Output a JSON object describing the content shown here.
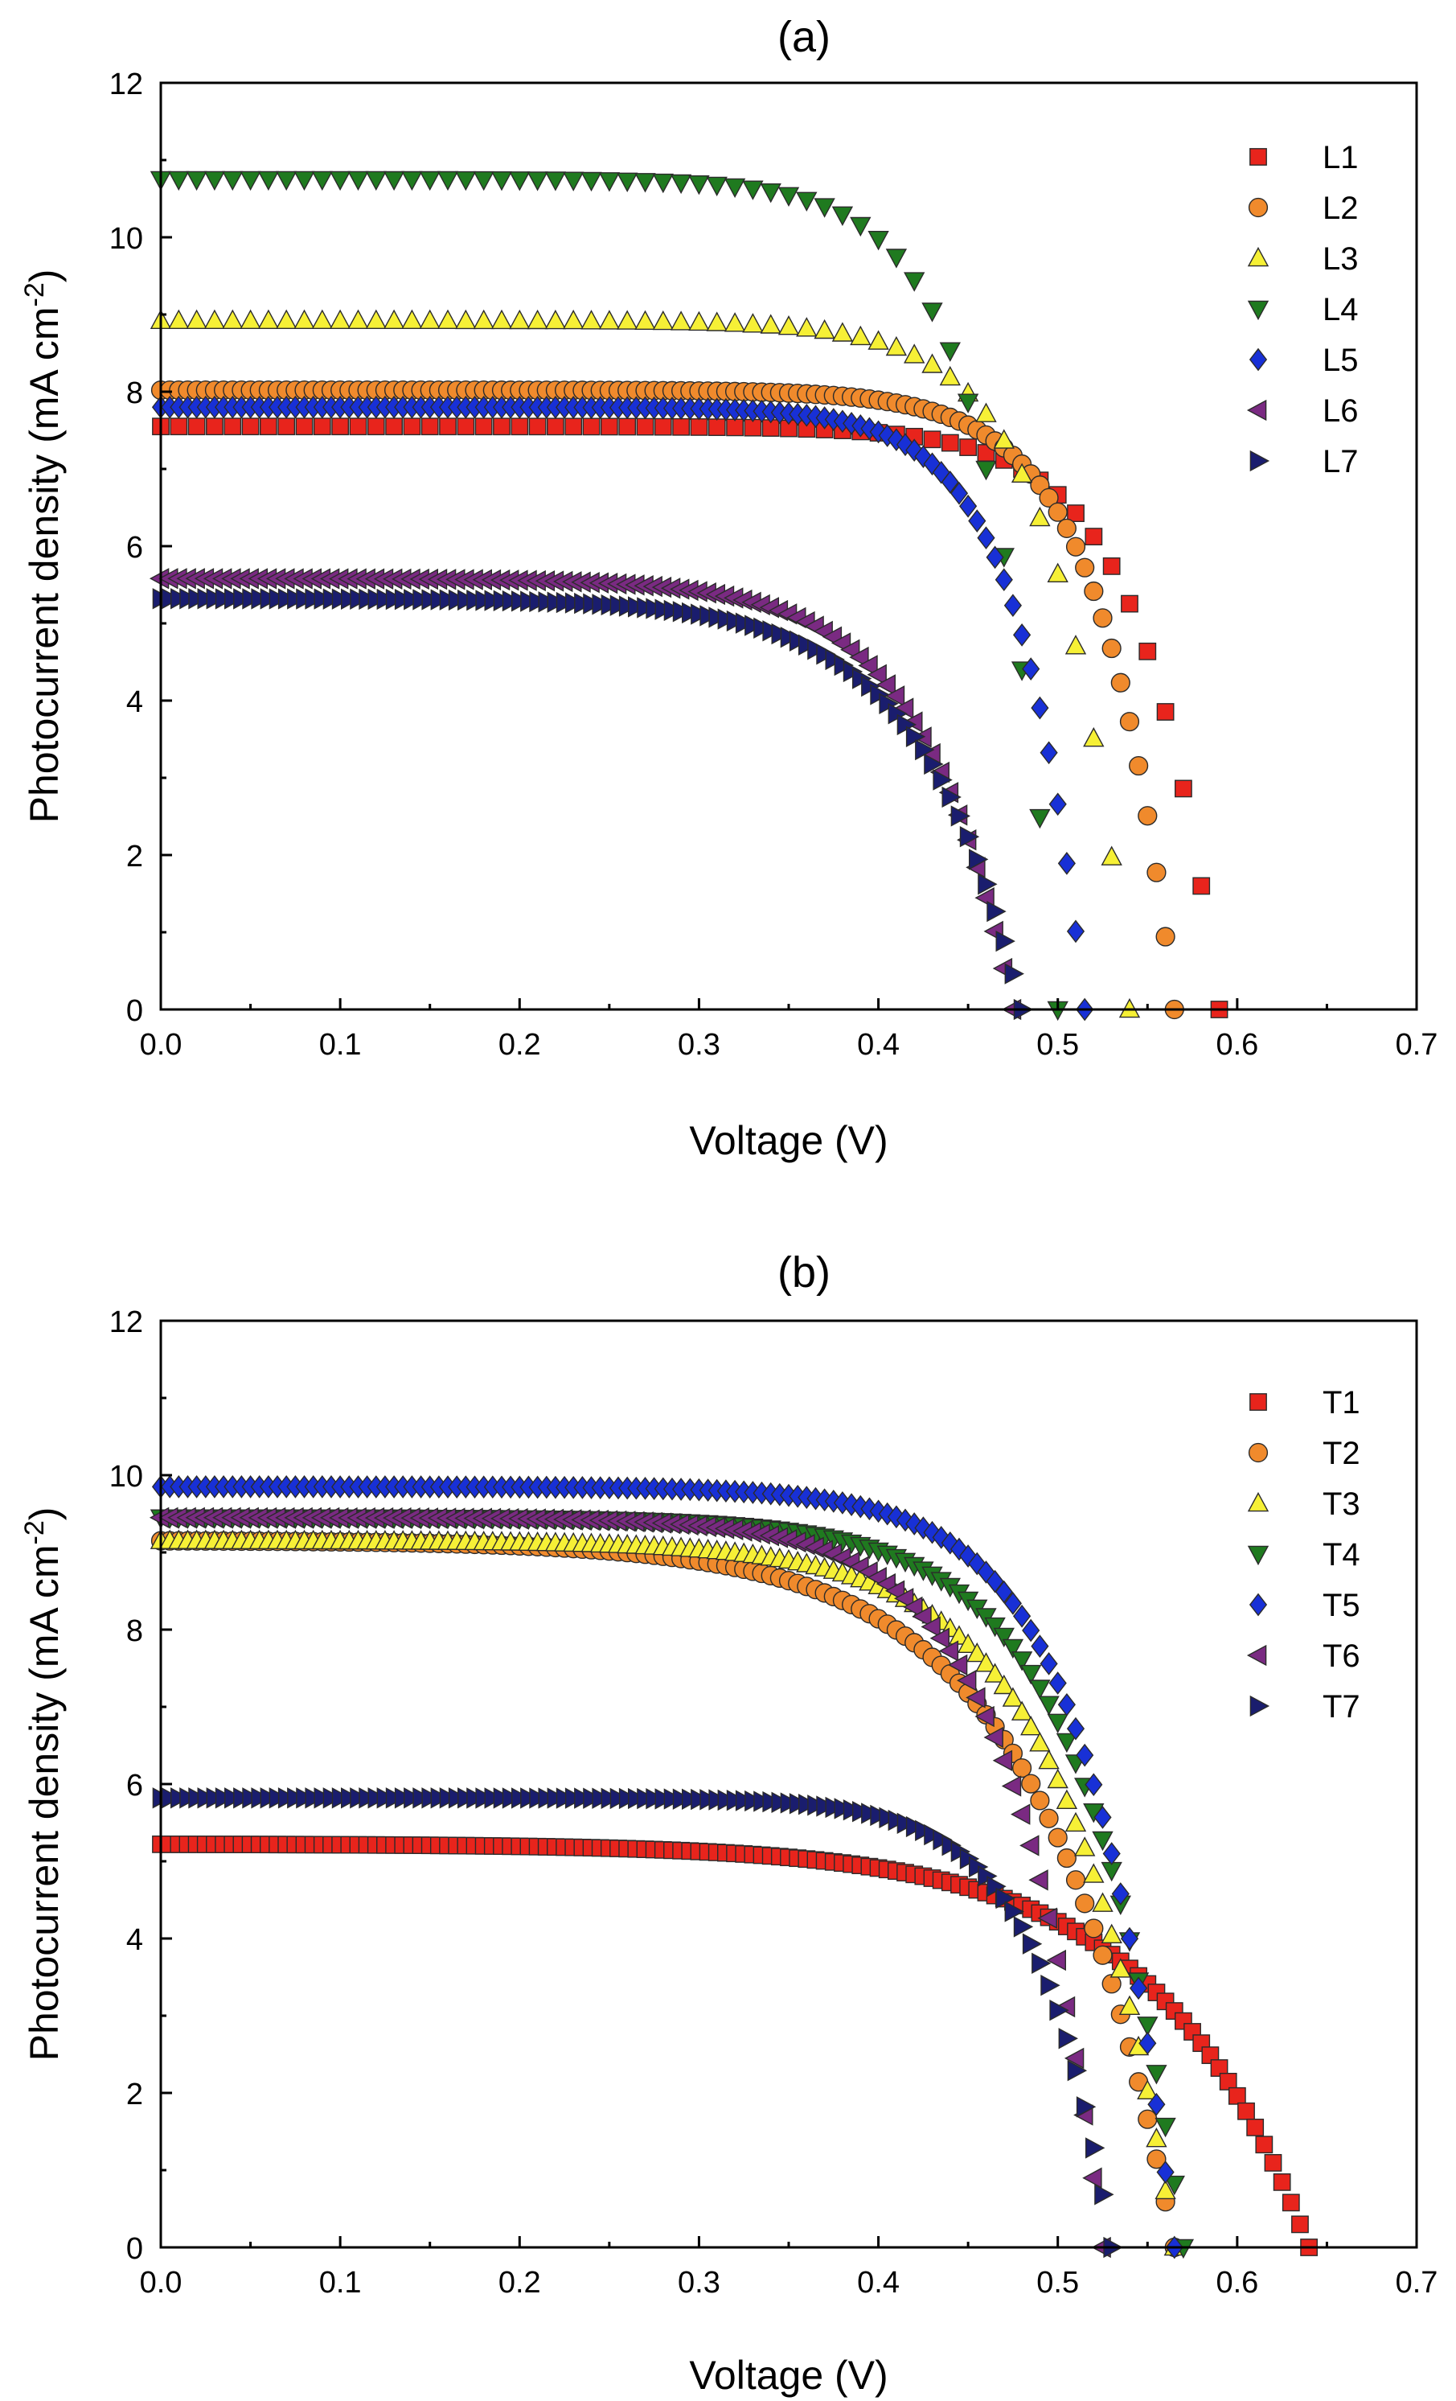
{
  "chart_data": [
    {
      "type": "scatter",
      "panel_label": "(a)",
      "xlabel": "Voltage (V)",
      "ylabel": "Photocurrent density (mA cm",
      "ylabel_sup": "-2",
      "ylabel_close": ")",
      "xlim": [
        0.0,
        0.7
      ],
      "ylim": [
        0,
        12
      ],
      "xticks": [
        "0.0",
        "0.1",
        "0.2",
        "0.3",
        "0.4",
        "0.5",
        "0.6",
        "0.7"
      ],
      "yticks": [
        "0",
        "2",
        "4",
        "6",
        "8",
        "10",
        "12"
      ],
      "legend_position": "top-right",
      "series": [
        {
          "name": "L1",
          "marker": "square",
          "color": "#e8241c",
          "jsc": 7.55,
          "voc": 0.59,
          "kink": 0.41,
          "g": 0.042,
          "dx": 0.01
        },
        {
          "name": "L2",
          "marker": "circle",
          "color": "#f08a2c",
          "jsc": 8.02,
          "voc": 0.565,
          "kink": 0.35,
          "g": 0.04,
          "dx": 0.005
        },
        {
          "name": "L3",
          "marker": "triangle-up",
          "color": "#f6f036",
          "jsc": 8.92,
          "voc": 0.54,
          "kink": 0.36,
          "g": 0.04,
          "dx": 0.01
        },
        {
          "name": "L4",
          "marker": "triangle-down",
          "color": "#1f7a1f",
          "jsc": 10.75,
          "voc": 0.5,
          "kink": 0.32,
          "g": 0.038,
          "dx": 0.01
        },
        {
          "name": "L5",
          "marker": "diamond",
          "color": "#1830d6",
          "jsc": 7.8,
          "voc": 0.515,
          "kink": 0.3,
          "g": 0.036,
          "dx": 0.005
        },
        {
          "name": "L6",
          "marker": "triangle-left",
          "color": "#7a2a82",
          "jsc": 5.58,
          "voc": 0.475,
          "kink": 0.24,
          "g": 0.05,
          "dx": 0.005
        },
        {
          "name": "L7",
          "marker": "triangle-right",
          "color": "#1a1d6e",
          "jsc": 5.32,
          "voc": 0.48,
          "kink": 0.22,
          "g": 0.055,
          "dx": 0.005
        }
      ]
    },
    {
      "type": "scatter",
      "panel_label": "(b)",
      "xlabel": "Voltage (V)",
      "ylabel": "Photocurrent density (mA cm",
      "ylabel_sup": "-2",
      "ylabel_close": ")",
      "xlim": [
        0.0,
        0.7
      ],
      "ylim": [
        0,
        12
      ],
      "xticks": [
        "0.0",
        "0.1",
        "0.2",
        "0.3",
        "0.4",
        "0.5",
        "0.6",
        "0.7"
      ],
      "yticks": [
        "0",
        "2",
        "4",
        "6",
        "8",
        "10",
        "12"
      ],
      "legend_position": "top-right",
      "series": [
        {
          "name": "T1",
          "marker": "square",
          "color": "#e8241c",
          "jsc": 5.22,
          "voc": 0.64,
          "kink": 0.3,
          "g": 0.085,
          "dx": 0.005
        },
        {
          "name": "T2",
          "marker": "circle",
          "color": "#f08a2c",
          "jsc": 9.15,
          "voc": 0.565,
          "kink": 0.2,
          "g": 0.075,
          "dx": 0.005
        },
        {
          "name": "T3",
          "marker": "triangle-up",
          "color": "#f6f036",
          "jsc": 9.15,
          "voc": 0.565,
          "kink": 0.26,
          "g": 0.06,
          "dx": 0.005
        },
        {
          "name": "T4",
          "marker": "triangle-down",
          "color": "#1f7a1f",
          "jsc": 9.45,
          "voc": 0.57,
          "kink": 0.28,
          "g": 0.055,
          "dx": 0.005
        },
        {
          "name": "T5",
          "marker": "diamond",
          "color": "#1830d6",
          "jsc": 9.85,
          "voc": 0.565,
          "kink": 0.34,
          "g": 0.048,
          "dx": 0.005
        },
        {
          "name": "T6",
          "marker": "triangle-left",
          "color": "#7a2a82",
          "jsc": 9.45,
          "voc": 0.525,
          "kink": 0.29,
          "g": 0.05,
          "dx": 0.005
        },
        {
          "name": "T7",
          "marker": "triangle-right",
          "color": "#1a1d6e",
          "jsc": 5.82,
          "voc": 0.53,
          "kink": 0.34,
          "g": 0.04,
          "dx": 0.005
        }
      ]
    }
  ]
}
